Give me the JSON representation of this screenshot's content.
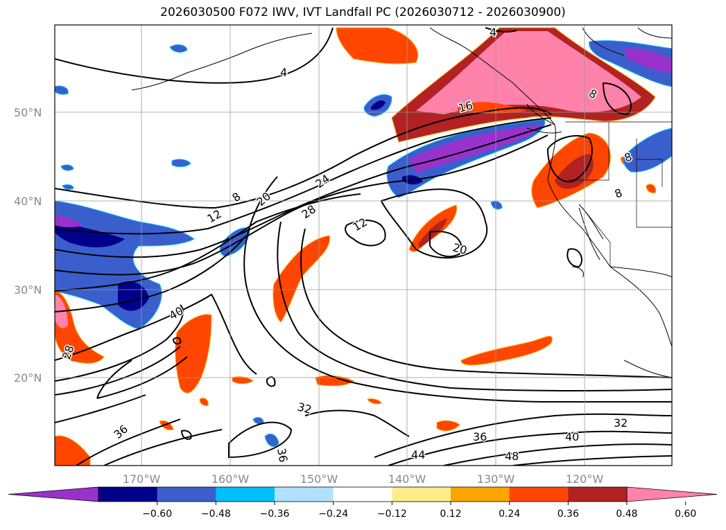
{
  "title": "2026030500 F072 IWV, IVT Landfall PC (2026030712 - 2026030900)",
  "lat_labels": [
    "50°N",
    "40°N",
    "30°N",
    "20°N"
  ],
  "lon_labels": [
    "170°W",
    "160°W",
    "150°W",
    "140°W",
    "130°W",
    "120°W"
  ],
  "contour_labels": [
    "4",
    "4",
    "8",
    "8",
    "8",
    "8",
    "12",
    "12",
    "16",
    "20",
    "20",
    "24",
    "28",
    "28",
    "32",
    "32",
    "36",
    "36",
    "36",
    "40",
    "40",
    "44",
    "48"
  ],
  "colorbar": {
    "ticks": [
      "−0.60",
      "−0.48",
      "−0.36",
      "−0.24",
      "−0.12",
      "0.12",
      "0.24",
      "0.36",
      "0.48",
      "0.60"
    ],
    "colors": [
      "#9932cc",
      "#00008b",
      "#3a5fcd",
      "#00bfff",
      "#b0e2ff",
      "#ffffff",
      "#ffec8b",
      "#ffa500",
      "#ff4500",
      "#b22222",
      "#ff82ab"
    ]
  }
}
